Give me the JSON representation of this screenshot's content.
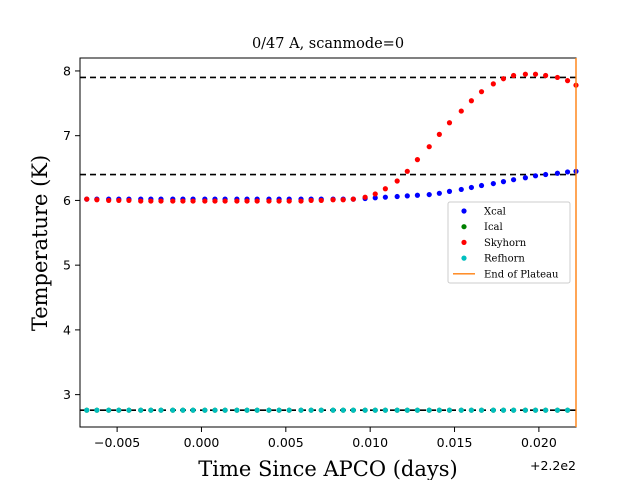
{
  "chart_data": {
    "type": "scatter",
    "title": "0/47 A, scanmode=0",
    "xlabel": "Time Since APCO (days)",
    "ylabel": "Temperature (K)",
    "x_offset_label": "+2.2e2",
    "xlim": [
      -0.0072,
      0.0222
    ],
    "ylim": [
      2.5,
      8.2
    ],
    "x_ticks": [
      -0.005,
      0.0,
      0.005,
      0.01,
      0.015,
      0.02
    ],
    "x_tick_labels": [
      "−0.005",
      "0.000",
      "0.005",
      "0.010",
      "0.015",
      "0.020"
    ],
    "y_ticks": [
      3,
      4,
      5,
      6,
      7,
      8
    ],
    "y_tick_labels": [
      "3",
      "4",
      "5",
      "6",
      "7",
      "8"
    ],
    "hlines": [
      7.9,
      6.4,
      2.76
    ],
    "vline_x": 0.0222,
    "grid": false,
    "legend_position": "center-right",
    "series": [
      {
        "name": "Xcal",
        "color": "#0000ff",
        "x": [
          -0.0068,
          -0.0062,
          -0.0055,
          -0.0049,
          -0.0043,
          -0.0036,
          -0.003,
          -0.0024,
          -0.0017,
          -0.0011,
          -0.0005,
          0.0002,
          0.0008,
          0.0014,
          0.0021,
          0.0027,
          0.0033,
          0.004,
          0.0046,
          0.0052,
          0.0059,
          0.0065,
          0.0071,
          0.0078,
          0.0084,
          0.009,
          0.0097,
          0.0103,
          0.0109,
          0.0116,
          0.0122,
          0.0128,
          0.0135,
          0.0141,
          0.0147,
          0.0154,
          0.016,
          0.0166,
          0.0173,
          0.0179,
          0.0185,
          0.0192,
          0.0198,
          0.0204,
          0.0211,
          0.0217,
          0.0222
        ],
        "y": [
          6.02,
          6.02,
          6.02,
          6.02,
          6.02,
          6.02,
          6.02,
          6.02,
          6.02,
          6.02,
          6.02,
          6.02,
          6.02,
          6.02,
          6.02,
          6.02,
          6.02,
          6.02,
          6.02,
          6.02,
          6.02,
          6.02,
          6.02,
          6.02,
          6.02,
          6.02,
          6.03,
          6.04,
          6.05,
          6.06,
          6.07,
          6.08,
          6.09,
          6.11,
          6.14,
          6.17,
          6.2,
          6.23,
          6.26,
          6.29,
          6.32,
          6.35,
          6.38,
          6.4,
          6.42,
          6.44,
          6.45
        ]
      },
      {
        "name": "Ical",
        "color": "#008000",
        "x": [
          -0.0068,
          -0.0062,
          -0.0055,
          -0.0049,
          -0.0043,
          -0.0036,
          -0.003,
          -0.0024,
          -0.0017,
          -0.0011,
          -0.0005,
          0.0002,
          0.0008,
          0.0014,
          0.0021,
          0.0027,
          0.0033,
          0.004,
          0.0046,
          0.0052,
          0.0059,
          0.0065,
          0.0071,
          0.0078,
          0.0084,
          0.009,
          0.0097,
          0.0103,
          0.0109,
          0.0116,
          0.0122,
          0.0128,
          0.0135,
          0.0141,
          0.0147,
          0.0154,
          0.016,
          0.0166,
          0.0173,
          0.0179,
          0.0185,
          0.0192,
          0.0198,
          0.0204,
          0.0211,
          0.0217
        ],
        "y": [
          2.76,
          2.76,
          2.76,
          2.76,
          2.76,
          2.76,
          2.76,
          2.76,
          2.76,
          2.76,
          2.76,
          2.76,
          2.76,
          2.76,
          2.76,
          2.76,
          2.76,
          2.76,
          2.76,
          2.76,
          2.76,
          2.76,
          2.76,
          2.76,
          2.76,
          2.76,
          2.76,
          2.76,
          2.76,
          2.76,
          2.76,
          2.76,
          2.76,
          2.76,
          2.76,
          2.76,
          2.76,
          2.76,
          2.76,
          2.76,
          2.76,
          2.76,
          2.76,
          2.76,
          2.76,
          2.76
        ]
      },
      {
        "name": "Skyhorn",
        "color": "#ff0000",
        "x": [
          -0.0068,
          -0.0062,
          -0.0055,
          -0.0049,
          -0.0043,
          -0.0036,
          -0.003,
          -0.0024,
          -0.0017,
          -0.0011,
          -0.0005,
          0.0002,
          0.0008,
          0.0014,
          0.0021,
          0.0027,
          0.0033,
          0.004,
          0.0046,
          0.0052,
          0.0059,
          0.0065,
          0.0071,
          0.0078,
          0.0084,
          0.009,
          0.0097,
          0.0103,
          0.0109,
          0.0116,
          0.0122,
          0.0128,
          0.0135,
          0.0141,
          0.0147,
          0.0154,
          0.016,
          0.0166,
          0.0173,
          0.0179,
          0.0185,
          0.0192,
          0.0198,
          0.0204,
          0.0211,
          0.0217,
          0.0222
        ],
        "y": [
          6.02,
          6.01,
          6.0,
          6.0,
          6.0,
          5.99,
          5.99,
          5.99,
          5.99,
          5.99,
          5.99,
          5.99,
          5.99,
          5.99,
          5.99,
          5.99,
          5.99,
          5.99,
          5.99,
          5.99,
          5.99,
          6.0,
          6.0,
          6.01,
          6.01,
          6.02,
          6.05,
          6.1,
          6.18,
          6.3,
          6.45,
          6.63,
          6.83,
          7.02,
          7.2,
          7.38,
          7.54,
          7.68,
          7.8,
          7.88,
          7.93,
          7.95,
          7.95,
          7.93,
          7.9,
          7.85,
          7.78
        ]
      },
      {
        "name": "Refhorn",
        "color": "#00bfbf",
        "x": [
          -0.0068,
          -0.0062,
          -0.0055,
          -0.0049,
          -0.0043,
          -0.0036,
          -0.003,
          -0.0024,
          -0.0017,
          -0.0011,
          -0.0005,
          0.0002,
          0.0008,
          0.0014,
          0.0021,
          0.0027,
          0.0033,
          0.004,
          0.0046,
          0.0052,
          0.0059,
          0.0065,
          0.0071,
          0.0078,
          0.0084,
          0.009,
          0.0097,
          0.0103,
          0.0109,
          0.0116,
          0.0122,
          0.0128,
          0.0135,
          0.0141,
          0.0147,
          0.0154,
          0.016,
          0.0166,
          0.0173,
          0.0179,
          0.0185,
          0.0192,
          0.0198,
          0.0204,
          0.0211,
          0.0217
        ],
        "y": [
          2.76,
          2.76,
          2.76,
          2.76,
          2.76,
          2.76,
          2.76,
          2.76,
          2.76,
          2.76,
          2.76,
          2.76,
          2.76,
          2.76,
          2.76,
          2.76,
          2.76,
          2.76,
          2.76,
          2.76,
          2.76,
          2.76,
          2.76,
          2.76,
          2.76,
          2.76,
          2.76,
          2.76,
          2.76,
          2.76,
          2.76,
          2.76,
          2.76,
          2.76,
          2.76,
          2.76,
          2.76,
          2.76,
          2.76,
          2.76,
          2.76,
          2.76,
          2.76,
          2.76,
          2.76,
          2.76
        ]
      }
    ],
    "legend_items": [
      {
        "label": "Xcal",
        "color": "#0000ff",
        "kind": "marker"
      },
      {
        "label": "Ical",
        "color": "#008000",
        "kind": "marker"
      },
      {
        "label": "Skyhorn",
        "color": "#ff0000",
        "kind": "marker"
      },
      {
        "label": "Refhorn",
        "color": "#00bfbf",
        "kind": "marker"
      },
      {
        "label": "End of Plateau",
        "color": "#ff7f0e",
        "kind": "line"
      }
    ]
  }
}
